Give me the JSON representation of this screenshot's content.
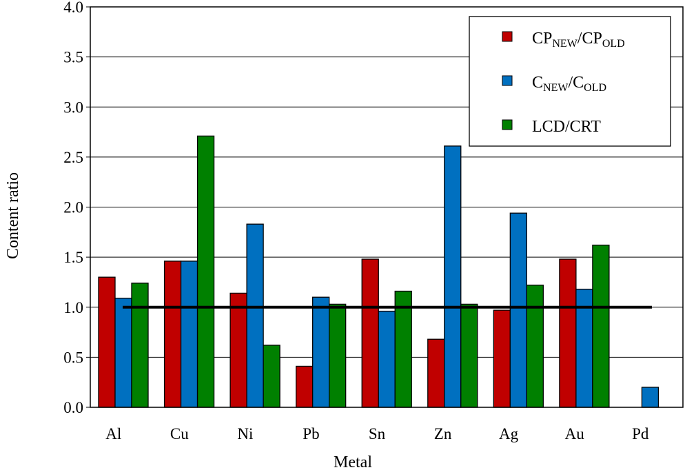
{
  "chart_data": {
    "type": "bar",
    "xlabel": "Metal",
    "ylabel": "Content  ratio",
    "ylim": [
      0,
      4.0
    ],
    "yticks": [
      "0.0",
      "0.5",
      "1.0",
      "1.5",
      "2.0",
      "2.5",
      "3.0",
      "3.5",
      "4.0"
    ],
    "categories": [
      "Al",
      "Cu",
      "Ni",
      "Pb",
      "Sn",
      "Zn",
      "Ag",
      "Au",
      "Pd"
    ],
    "grid": "horizontal",
    "legend_position": "top-right",
    "reference_line": 1.0,
    "series": [
      {
        "name": "CPNEW/CPOLD",
        "legend": {
          "a": "CP",
          "a_sub": "NEW",
          "b": "/CP",
          "b_sub": "OLD"
        },
        "color": "#c00000",
        "values": [
          1.3,
          1.46,
          1.14,
          0.41,
          1.48,
          0.68,
          0.97,
          1.48,
          0
        ]
      },
      {
        "name": "CNEW/COLD",
        "legend": {
          "a": "C",
          "a_sub": "NEW",
          "b": "/C",
          "b_sub": "OLD"
        },
        "color": "#0070c0",
        "values": [
          1.09,
          1.46,
          1.83,
          1.1,
          0.96,
          2.61,
          1.94,
          1.18,
          0.2
        ]
      },
      {
        "name": "LCD/CRT",
        "legend": {
          "a": "LCD/CRT",
          "a_sub": "",
          "b": "",
          "b_sub": ""
        },
        "color": "#008000",
        "values": [
          1.24,
          2.71,
          0.62,
          1.03,
          1.16,
          1.03,
          1.22,
          1.62,
          0
        ]
      }
    ]
  }
}
